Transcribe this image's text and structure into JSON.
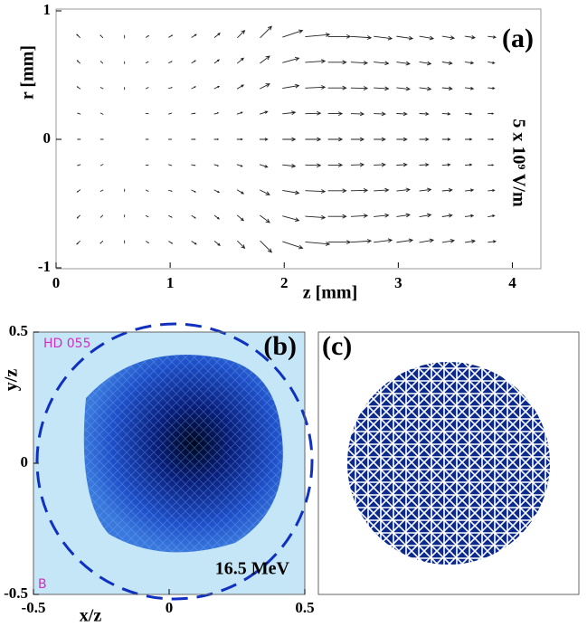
{
  "chart_data": [
    {
      "type": "quiver",
      "label": "(a)",
      "xlabel": "z [mm]",
      "ylabel": "r [mm]",
      "scale_label": "5 x 10⁹ V/m",
      "xlim": [
        0,
        4.25
      ],
      "ylim": [
        -1,
        1
      ],
      "xticks": [
        0,
        1,
        2,
        3,
        4
      ],
      "yticks": [
        -1,
        0,
        1
      ],
      "z": [
        0.2,
        0.4,
        0.6,
        0.8,
        1.0,
        1.2,
        1.4,
        1.6,
        1.8,
        2.0,
        2.2,
        2.4,
        2.6,
        2.8,
        3.0,
        3.2,
        3.4,
        3.6,
        3.8
      ],
      "rows": [
        {
          "r": 0.8,
          "u": [
            -0.5,
            -0.3,
            0,
            0.3,
            0.5,
            0.8,
            1,
            1.5,
            2.5,
            4.5,
            5.5,
            5,
            4.5,
            4,
            3.5,
            3,
            2.5,
            2,
            1.5
          ],
          "v": [
            0.5,
            0.3,
            0.2,
            0.2,
            0.3,
            0.5,
            0.8,
            1.5,
            2.5,
            1.5,
            0.5,
            0,
            -0.3,
            -0.5,
            -0.5,
            -0.5,
            -0.4,
            -0.3,
            -0.2
          ]
        },
        {
          "r": 0.6,
          "u": [
            -0.4,
            -0.2,
            0,
            0.2,
            0.4,
            0.6,
            0.8,
            1.2,
            2,
            3.6,
            4.4,
            4,
            3.6,
            3.2,
            2.8,
            2.4,
            2,
            1.6,
            1.2
          ],
          "v": [
            0.4,
            0.2,
            0.1,
            0.1,
            0.2,
            0.4,
            0.6,
            1,
            1.5,
            1,
            0.3,
            0,
            -0.2,
            -0.3,
            -0.4,
            -0.4,
            -0.3,
            -0.2,
            -0.2
          ]
        },
        {
          "r": 0.4,
          "u": [
            -0.4,
            -0.2,
            0,
            0.2,
            0.4,
            0.6,
            0.8,
            1.2,
            2,
            3.6,
            4.4,
            4,
            3.6,
            3.2,
            2.8,
            2.4,
            2,
            1.6,
            1.2
          ],
          "v": [
            0.3,
            0.1,
            0.1,
            0.1,
            0.1,
            0.3,
            0.4,
            0.7,
            1,
            0.6,
            0.2,
            0,
            -0.1,
            -0.2,
            -0.3,
            -0.3,
            -0.2,
            -0.2,
            -0.1
          ]
        },
        {
          "r": 0.2,
          "u": [
            -0.3,
            -0.2,
            0,
            0.2,
            0.3,
            0.5,
            0.6,
            0.9,
            1.5,
            2.7,
            3.3,
            3,
            2.7,
            2.4,
            2.1,
            1.8,
            1.5,
            1.2,
            0.9
          ],
          "v": [
            0.1,
            0.1,
            0,
            0,
            0.1,
            0.1,
            0.2,
            0.3,
            0.5,
            0.3,
            0.1,
            0,
            -0.1,
            -0.1,
            -0.1,
            -0.1,
            -0.1,
            -0.1,
            0
          ]
        },
        {
          "r": 0,
          "u": [
            -0.3,
            -0.2,
            0,
            0.2,
            0.3,
            0.5,
            0.6,
            0.9,
            1.5,
            2.7,
            3.3,
            3,
            2.7,
            2.4,
            2.1,
            1.8,
            1.5,
            1.2,
            0.9
          ],
          "v": [
            0,
            0,
            0,
            0,
            0,
            0,
            0,
            0,
            0,
            0,
            0,
            0,
            0,
            0,
            0,
            0,
            0,
            0,
            0
          ]
        },
        {
          "r": -0.2,
          "u": [
            -0.3,
            -0.2,
            0,
            0.2,
            0.3,
            0.5,
            0.6,
            0.9,
            1.5,
            2.7,
            3.3,
            3,
            2.7,
            2.4,
            2.1,
            1.8,
            1.5,
            1.2,
            0.9
          ],
          "v": [
            -0.1,
            -0.1,
            0,
            0,
            -0.1,
            -0.1,
            -0.2,
            -0.3,
            -0.5,
            -0.3,
            -0.1,
            0,
            0.1,
            0.1,
            0.1,
            0.1,
            0.1,
            0.1,
            0
          ]
        },
        {
          "r": -0.4,
          "u": [
            -0.4,
            -0.2,
            0,
            0.2,
            0.4,
            0.6,
            0.8,
            1.2,
            2,
            3.6,
            4.4,
            4,
            3.6,
            3.2,
            2.8,
            2.4,
            2,
            1.6,
            1.2
          ],
          "v": [
            -0.3,
            -0.1,
            -0.1,
            -0.1,
            -0.1,
            -0.3,
            -0.4,
            -0.7,
            -1,
            -0.6,
            -0.2,
            0,
            0.1,
            0.2,
            0.3,
            0.3,
            0.2,
            0.2,
            0.1
          ]
        },
        {
          "r": -0.6,
          "u": [
            -0.4,
            -0.2,
            0,
            0.2,
            0.4,
            0.6,
            0.8,
            1.2,
            2,
            3.6,
            4.4,
            4,
            3.6,
            3.2,
            2.8,
            2.4,
            2,
            1.6,
            1.2
          ],
          "v": [
            -0.4,
            -0.2,
            -0.1,
            -0.1,
            -0.2,
            -0.4,
            -0.6,
            -1,
            -1.5,
            -1,
            -0.3,
            0,
            0.2,
            0.3,
            0.4,
            0.4,
            0.3,
            0.2,
            0.2
          ]
        },
        {
          "r": -0.8,
          "u": [
            -0.5,
            -0.3,
            0,
            0.3,
            0.5,
            0.8,
            1,
            1.5,
            2.5,
            4.5,
            5.5,
            5,
            4.5,
            4,
            3.5,
            3,
            2.5,
            2,
            1.5
          ],
          "v": [
            -0.5,
            -0.3,
            -0.2,
            -0.2,
            -0.3,
            -0.5,
            -0.8,
            -1.5,
            -2.5,
            -1.5,
            -0.5,
            0,
            0.3,
            0.5,
            0.5,
            0.5,
            0.4,
            0.3,
            0.2
          ]
        }
      ]
    },
    {
      "type": "image",
      "label": "(b)",
      "xlabel": "x/z",
      "ylabel": "y/z",
      "xlim": [
        -0.5,
        0.5
      ],
      "ylim": [
        -0.5,
        0.5
      ],
      "xticks": [
        -0.5,
        0,
        0.5
      ],
      "yticks": [
        -0.5,
        0,
        0.5
      ],
      "annotation": "16.5 MeV",
      "handwriting": [
        "HD 055",
        "B"
      ]
    },
    {
      "type": "image",
      "label": "(c)"
    }
  ]
}
